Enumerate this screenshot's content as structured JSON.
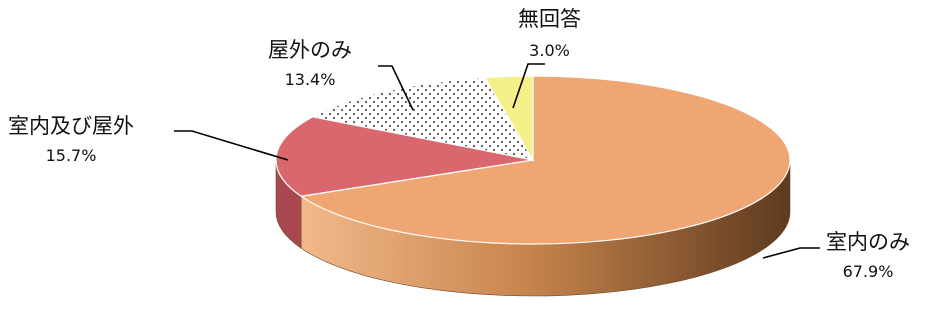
{
  "chart_data": {
    "type": "pie",
    "title": "",
    "slices": [
      {
        "label": "室内のみ",
        "value": 67.9,
        "value_text": "67.9%",
        "color": "#F0A672",
        "side_color": "#C27A45",
        "pattern": "none"
      },
      {
        "label": "室内及び屋外",
        "value": 15.7,
        "value_text": "15.7%",
        "color": "#D9686E",
        "side_color": "#A8484E",
        "pattern": "none"
      },
      {
        "label": "屋外のみ",
        "value": 13.4,
        "value_text": "13.4%",
        "color": "#FFFFFF",
        "side_color": "#CCCCCC",
        "pattern": "dots"
      },
      {
        "label": "無回答",
        "value": 3.0,
        "value_text": "3.0%",
        "color": "#F4F08A",
        "side_color": "#C9C55E",
        "pattern": "none"
      }
    ],
    "legend": "none",
    "style": "3d-pie"
  }
}
